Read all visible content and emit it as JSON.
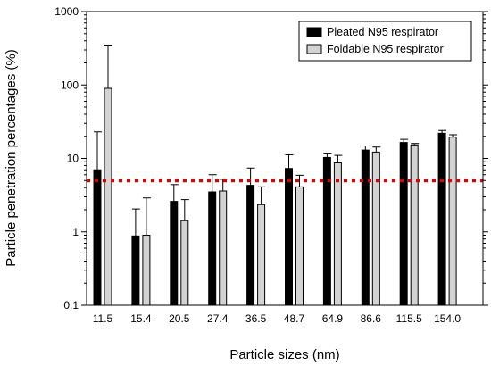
{
  "chart_data": {
    "type": "bar",
    "xlabel": "Particle sizes (nm)",
    "ylabel": "Particle penetration percentages (%)",
    "yscale": "log",
    "ylim": [
      0.1,
      1000
    ],
    "y_ticks": [
      0.1,
      1,
      10,
      100,
      1000
    ],
    "y_tick_labels": [
      "0.1",
      "1",
      "10",
      "100",
      "1000"
    ],
    "categories": [
      "11.5",
      "15.4",
      "20.5",
      "27.4",
      "36.5",
      "48.7",
      "64.9",
      "86.6",
      "115.5",
      "154.0"
    ],
    "series": [
      {
        "name": "Pleated N95 respirator",
        "color": "#000000",
        "values": [
          7.0,
          0.88,
          2.6,
          3.5,
          4.3,
          7.3,
          10.3,
          13.0,
          16.5,
          22.0
        ],
        "error_upper": [
          23.0,
          2.05,
          4.4,
          6.0,
          7.4,
          11.2,
          11.8,
          14.8,
          18.2,
          24.0
        ]
      },
      {
        "name": "Foldable N95 respirator",
        "color": "#d3d3d3",
        "values": [
          90.0,
          0.9,
          1.42,
          3.6,
          2.35,
          4.1,
          8.7,
          12.2,
          15.3,
          19.5
        ],
        "error_upper": [
          350.0,
          2.9,
          2.75,
          5.2,
          4.1,
          5.9,
          11.0,
          14.3,
          16.0,
          21.0
        ]
      }
    ],
    "reference_line": {
      "value": 5,
      "color": "#e00000",
      "style": "dotted"
    },
    "legend_position": "top-right",
    "grid": false
  }
}
